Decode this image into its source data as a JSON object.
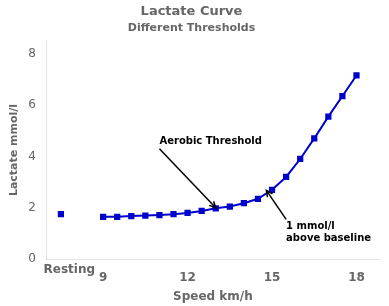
{
  "chart_data": {
    "type": "line",
    "title": "Lactate Curve",
    "subtitle": "Different Thresholds",
    "xlabel": "Speed km/h",
    "ylabel": "Lactate mmol/l",
    "xlim": [
      7.0,
      18.8
    ],
    "xticks": [
      9,
      12,
      15,
      18
    ],
    "ylim": [
      0,
      8.5
    ],
    "yticks": [
      0,
      2,
      4,
      6,
      8
    ],
    "grid": false,
    "series": [
      {
        "color": "#0000CC",
        "marker": "square",
        "line_style": "none",
        "x": [
          7.5
        ],
        "values": [
          1.75
        ]
      },
      {
        "color": "#0000CC",
        "marker": "square",
        "line_style": "solid",
        "x": [
          9.0,
          9.5,
          10.0,
          10.5,
          11.0,
          11.5,
          12.0,
          12.5,
          13.0,
          13.5,
          14.0,
          14.5,
          15.0,
          15.5,
          16.0,
          16.5,
          17.0,
          17.5,
          18.0
        ],
        "values": [
          1.65,
          1.65,
          1.68,
          1.7,
          1.72,
          1.75,
          1.8,
          1.88,
          1.98,
          2.05,
          2.18,
          2.35,
          2.7,
          3.2,
          3.9,
          4.7,
          5.55,
          6.35,
          7.15
        ]
      }
    ],
    "annotations": [
      {
        "text": "Resting",
        "x": 7.8
      },
      {
        "text": "Aerobic Threshold",
        "x": 13.0,
        "y": 2.0,
        "text_x": 11.0,
        "text_y": 4.3
      },
      {
        "text": "1 mmol/l\nabove baseline",
        "x": 14.8,
        "y": 2.68,
        "text_x": 15.5,
        "text_y": 1.55
      }
    ]
  }
}
